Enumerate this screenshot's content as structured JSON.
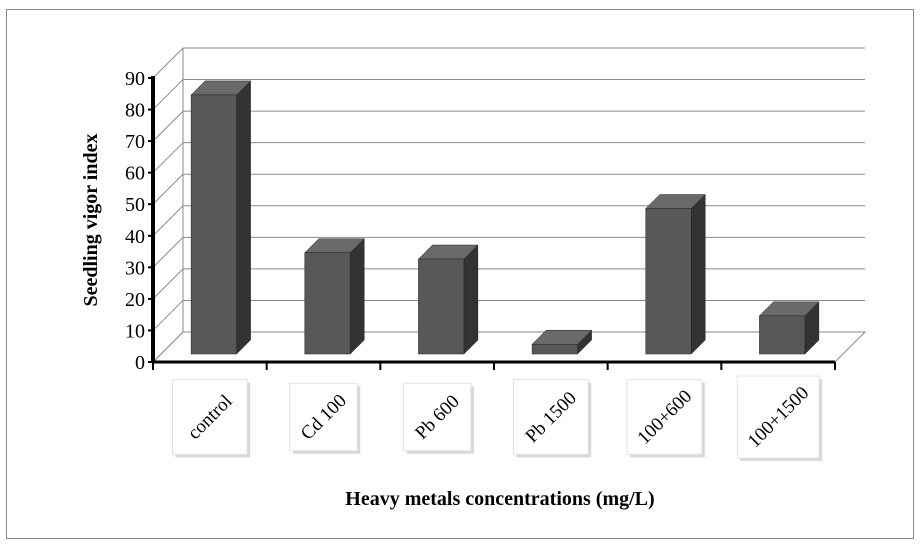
{
  "chart_data": {
    "type": "bar",
    "categories": [
      "control",
      "Cd 100",
      "Pb 600",
      "Pb 1500",
      "100+600",
      "100+1500"
    ],
    "values": [
      84,
      34,
      32,
      5,
      48,
      14
    ],
    "xlabel": "Heavy metals concentrations (mg/L)",
    "ylabel": "Seedling vigor index",
    "ylim": [
      0,
      90
    ],
    "yticks": [
      "0",
      "10",
      "20",
      "30",
      "40",
      "50",
      "60",
      "70",
      "80",
      "90"
    ],
    "grid": true,
    "style": "3d-column",
    "colors": {
      "bar_front": "#585858",
      "bar_side": "#333333",
      "bar_top": "#6a6a6a",
      "grid": "#8a8a8a"
    }
  }
}
